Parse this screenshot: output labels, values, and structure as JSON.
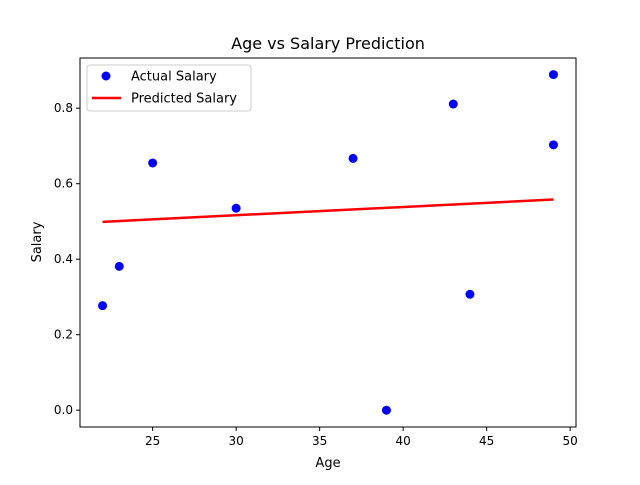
{
  "chart_data": {
    "type": "scatter",
    "title": "Age vs Salary Prediction",
    "xlabel": "Age",
    "ylabel": "Salary",
    "xlim": [
      20.65,
      50.35
    ],
    "ylim": [
      -0.0445,
      0.933
    ],
    "x_ticks": [
      25,
      30,
      35,
      40,
      45,
      50
    ],
    "y_ticks": [
      0.0,
      0.2,
      0.4,
      0.6,
      0.8
    ],
    "x_tick_labels": [
      "25",
      "30",
      "35",
      "40",
      "45",
      "50"
    ],
    "y_tick_labels": [
      "0.0",
      "0.2",
      "0.4",
      "0.6",
      "0.8"
    ],
    "legend_position": "top-left",
    "grid": false,
    "series": [
      {
        "name": "Actual Salary",
        "kind": "scatter",
        "color": "#0000ff",
        "points": [
          {
            "x": 22,
            "y": 0.277
          },
          {
            "x": 23,
            "y": 0.381
          },
          {
            "x": 25,
            "y": 0.655
          },
          {
            "x": 30,
            "y": 0.535
          },
          {
            "x": 37,
            "y": 0.667
          },
          {
            "x": 39,
            "y": 0.0
          },
          {
            "x": 43,
            "y": 0.811
          },
          {
            "x": 44,
            "y": 0.307
          },
          {
            "x": 49,
            "y": 0.889
          },
          {
            "x": 49,
            "y": 0.703
          }
        ]
      },
      {
        "name": "Predicted Salary",
        "kind": "line",
        "color": "#ff0000",
        "points": [
          {
            "x": 22,
            "y": 0.499
          },
          {
            "x": 49,
            "y": 0.558
          }
        ]
      }
    ]
  }
}
